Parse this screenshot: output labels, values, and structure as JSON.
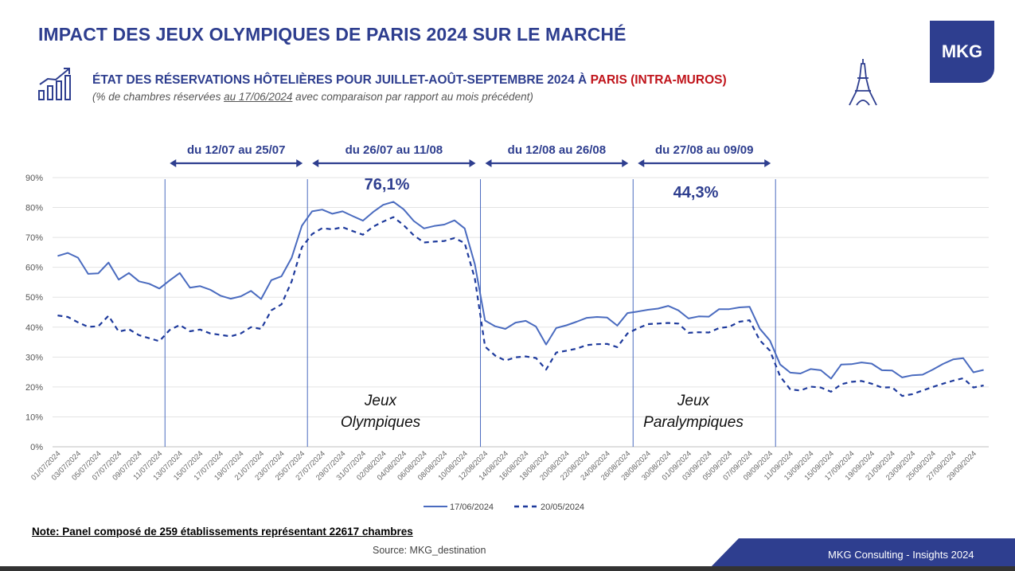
{
  "header": {
    "title": "IMPACT DES JEUX OLYMPIQUES DE PARIS 2024 SUR LE MARCHÉ",
    "logo_text": "MKG",
    "subtitle_main": "ÉTAT DES RÉSERVATIONS HÔTELIÈRES POUR JUILLET-AOÛT-SEPTEMBRE 2024 À ",
    "subtitle_red": "PARIS (INTRA-MUROS)",
    "note_prefix": "(% de chambres réservées ",
    "note_underlined": "au 17/06/2024",
    "note_suffix": " avec comparaison par rapport au mois précédent)",
    "chart_icon": "bar-chart-growth-icon",
    "tower_icon": "eiffel-tower-icon"
  },
  "footer": {
    "note": "Note: Panel composé de 259 établissements représentant 22617 chambres",
    "source": "Source: MKG_destination",
    "brand": "MKG Consulting -  Insights 2024"
  },
  "colors": {
    "accent": "#2e3e8f",
    "line": "#4a6bbf",
    "red": "#c0141b"
  },
  "chart_data": {
    "type": "line",
    "ylim": [
      0,
      90
    ],
    "yticks": [
      "0%",
      "10%",
      "20%",
      "30%",
      "40%",
      "50%",
      "60%",
      "70%",
      "80%",
      "90%"
    ],
    "x": [
      "01/07/2024",
      "02/07/2024",
      "03/07/2024",
      "04/07/2024",
      "05/07/2024",
      "06/07/2024",
      "07/07/2024",
      "08/07/2024",
      "09/07/2024",
      "10/07/2024",
      "11/07/2024",
      "12/07/2024",
      "13/07/2024",
      "14/07/2024",
      "15/07/2024",
      "16/07/2024",
      "17/07/2024",
      "18/07/2024",
      "19/07/2024",
      "20/07/2024",
      "21/07/2024",
      "22/07/2024",
      "23/07/2024",
      "24/07/2024",
      "25/07/2024",
      "26/07/2024",
      "27/07/2024",
      "28/07/2024",
      "29/07/2024",
      "30/07/2024",
      "31/07/2024",
      "01/08/2024",
      "02/08/2024",
      "03/08/2024",
      "04/08/2024",
      "05/08/2024",
      "06/08/2024",
      "07/08/2024",
      "08/08/2024",
      "09/08/2024",
      "10/08/2024",
      "11/08/2024",
      "12/08/2024",
      "13/08/2024",
      "14/08/2024",
      "15/08/2024",
      "16/08/2024",
      "17/08/2024",
      "18/08/2024",
      "19/08/2024",
      "20/08/2024",
      "21/08/2024",
      "22/08/2024",
      "23/08/2024",
      "24/08/2024",
      "25/08/2024",
      "26/08/2024",
      "27/08/2024",
      "28/08/2024",
      "29/08/2024",
      "30/08/2024",
      "31/08/2024",
      "01/09/2024",
      "02/09/2024",
      "03/09/2024",
      "04/09/2024",
      "05/09/2024",
      "06/09/2024",
      "07/09/2024",
      "08/09/2024",
      "09/09/2024",
      "10/09/2024",
      "11/09/2024",
      "12/09/2024",
      "13/09/2024",
      "14/09/2024",
      "15/09/2024",
      "16/09/2024",
      "17/09/2024",
      "18/09/2024",
      "19/09/2024",
      "20/09/2024",
      "21/09/2024",
      "22/09/2024",
      "23/09/2024",
      "24/09/2024",
      "25/09/2024",
      "26/09/2024",
      "27/09/2024",
      "28/09/2024",
      "29/09/2024",
      "30/09/2024"
    ],
    "xtick_labels": [
      "01/07/2024",
      "03/07/2024",
      "05/07/2024",
      "07/07/2024",
      "09/07/2024",
      "11/07/2024",
      "13/07/2024",
      "15/07/2024",
      "17/07/2024",
      "19/07/2024",
      "21/07/2024",
      "23/07/2024",
      "25/07/2024",
      "27/07/2024",
      "29/07/2024",
      "31/07/2024",
      "02/08/2024",
      "04/08/2024",
      "06/08/2024",
      "08/08/2024",
      "10/08/2024",
      "12/08/2024",
      "14/08/2024",
      "16/08/2024",
      "18/08/2024",
      "20/08/2024",
      "22/08/2024",
      "24/08/2024",
      "26/08/2024",
      "28/08/2024",
      "30/08/2024",
      "01/09/2024",
      "03/09/2024",
      "05/09/2024",
      "07/09/2024",
      "09/09/2024",
      "11/09/2024",
      "13/09/2024",
      "15/09/2024",
      "17/09/2024",
      "19/09/2024",
      "21/09/2024",
      "23/09/2024",
      "25/09/2024",
      "27/09/2024",
      "29/09/2024"
    ],
    "series": [
      {
        "name": "17/06/2024",
        "style": "solid",
        "values": [
          63.8,
          64.8,
          63.2,
          57.8,
          58.0,
          61.6,
          55.9,
          58.1,
          55.3,
          54.5,
          52.9,
          55.6,
          58.1,
          53.2,
          53.7,
          52.5,
          50.5,
          49.5,
          50.3,
          52.1,
          49.4,
          55.7,
          57.0,
          63.2,
          73.9,
          78.7,
          79.3,
          77.9,
          78.7,
          77.1,
          75.6,
          78.5,
          80.9,
          81.9,
          79.4,
          75.5,
          73.0,
          73.8,
          74.3,
          75.7,
          73.0,
          61.0,
          42.2,
          40.3,
          39.4,
          41.5,
          42.1,
          40.2,
          34.2,
          39.7,
          40.6,
          41.8,
          43.1,
          43.4,
          43.2,
          40.5,
          44.7,
          45.2,
          45.8,
          46.2,
          47.1,
          45.6,
          42.9,
          43.6,
          43.5,
          46.0,
          46.0,
          46.6,
          46.8,
          39.5,
          35.5,
          27.5,
          24.8,
          24.5,
          26.0,
          25.6,
          22.8,
          27.5,
          27.6,
          28.2,
          27.8,
          25.6,
          25.5,
          23.2,
          23.9,
          24.1,
          25.8,
          27.7,
          29.2,
          29.6,
          24.9,
          25.7
        ]
      },
      {
        "name": "20/05/2024",
        "style": "dashed",
        "values": [
          43.9,
          43.4,
          41.6,
          40.1,
          40.3,
          43.8,
          38.5,
          39.3,
          37.3,
          36.3,
          35.3,
          39.0,
          40.7,
          38.6,
          39.2,
          37.9,
          37.4,
          36.9,
          37.9,
          40.0,
          39.4,
          45.6,
          47.6,
          55.3,
          66.7,
          71.1,
          73.1,
          72.7,
          73.4,
          72.1,
          70.9,
          73.6,
          75.3,
          76.8,
          74.1,
          70.7,
          68.3,
          68.6,
          68.8,
          69.8,
          68.1,
          56.2,
          33.5,
          30.5,
          28.8,
          29.9,
          30.2,
          29.7,
          25.8,
          31.5,
          32.1,
          32.8,
          34.0,
          34.3,
          34.4,
          33.3,
          37.9,
          39.6,
          41.0,
          41.2,
          41.4,
          41.2,
          38.1,
          38.3,
          38.2,
          39.7,
          40.1,
          41.8,
          42.3,
          35.6,
          32.1,
          23.5,
          19.2,
          18.8,
          20.1,
          19.8,
          18.4,
          20.9,
          21.7,
          22.0,
          21.1,
          19.8,
          19.9,
          17.0,
          17.6,
          18.8,
          20.0,
          21.1,
          22.1,
          22.9,
          19.8,
          20.5
        ]
      }
    ],
    "legend": {
      "position": "bottom"
    },
    "grid": true,
    "periods": [
      {
        "label": "du 12/07 au 25/07"
      },
      {
        "label": "du 26/07 au 11/08"
      },
      {
        "label": "du 12/08 au 26/08"
      },
      {
        "label": "du 27/08 au 09/09"
      }
    ],
    "annotations": {
      "olympic_pct": "76,1%",
      "paralympic_pct": "44,3%",
      "olympic_line1": "Jeux",
      "olympic_line2": "Olympiques",
      "paralympic_line1": "Jeux",
      "paralympic_line2": "Paralympiques"
    }
  }
}
